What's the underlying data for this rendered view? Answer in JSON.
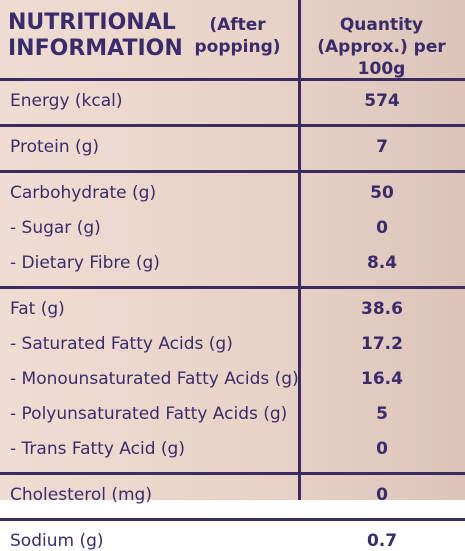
{
  "header": {
    "title": "NUTRITIONAL INFORMATION",
    "note": "(After popping)",
    "quantity": "Quantity (Approx.) per 100g"
  },
  "table": {
    "groups": [
      [
        [
          "Energy (kcal)",
          "574"
        ]
      ],
      [
        [
          "Protein (g)",
          "7"
        ]
      ],
      [
        [
          "Carbohydrate (g)",
          "50"
        ],
        [
          "- Sugar (g)",
          "0"
        ],
        [
          "- Dietary Fibre (g)",
          "8.4"
        ]
      ],
      [
        [
          "Fat (g)",
          "38.6"
        ],
        [
          "- Saturated Fatty Acids (g)",
          "17.2"
        ],
        [
          "- Monounsaturated Fatty Acids (g)",
          "16.4"
        ],
        [
          "- Polyunsaturated Fatty Acids (g)",
          "5"
        ],
        [
          "- Trans Fatty Acid (g)",
          "0"
        ]
      ],
      [
        [
          "Cholesterol (mg)",
          "0"
        ]
      ],
      [
        [
          "Sodium (g)",
          "0.7"
        ]
      ]
    ]
  }
}
